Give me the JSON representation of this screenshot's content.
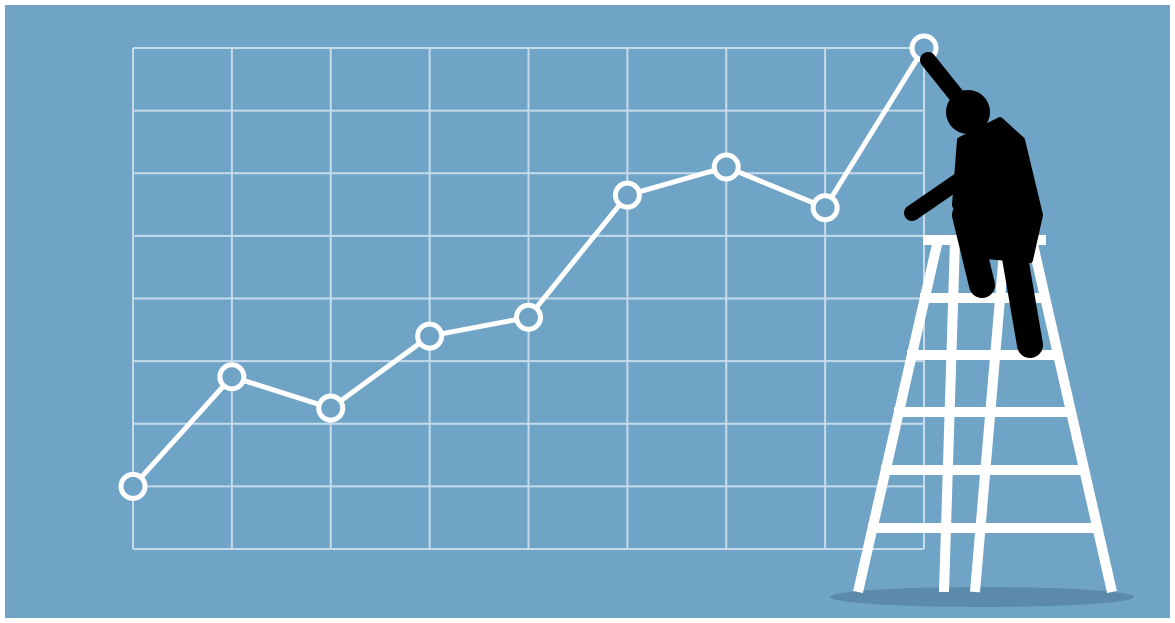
{
  "chart_data": {
    "type": "line",
    "categories": [
      null,
      null,
      null,
      null,
      null,
      null,
      null,
      null,
      null
    ],
    "values": [
      1.0,
      2.75,
      2.25,
      3.4,
      3.7,
      5.65,
      6.1,
      5.45,
      8.0
    ],
    "color": "#ffffff",
    "ylim": [
      0,
      8
    ],
    "yticks": [
      0,
      1,
      2,
      3,
      4,
      5,
      6,
      7,
      8
    ],
    "grid": true
  }
}
